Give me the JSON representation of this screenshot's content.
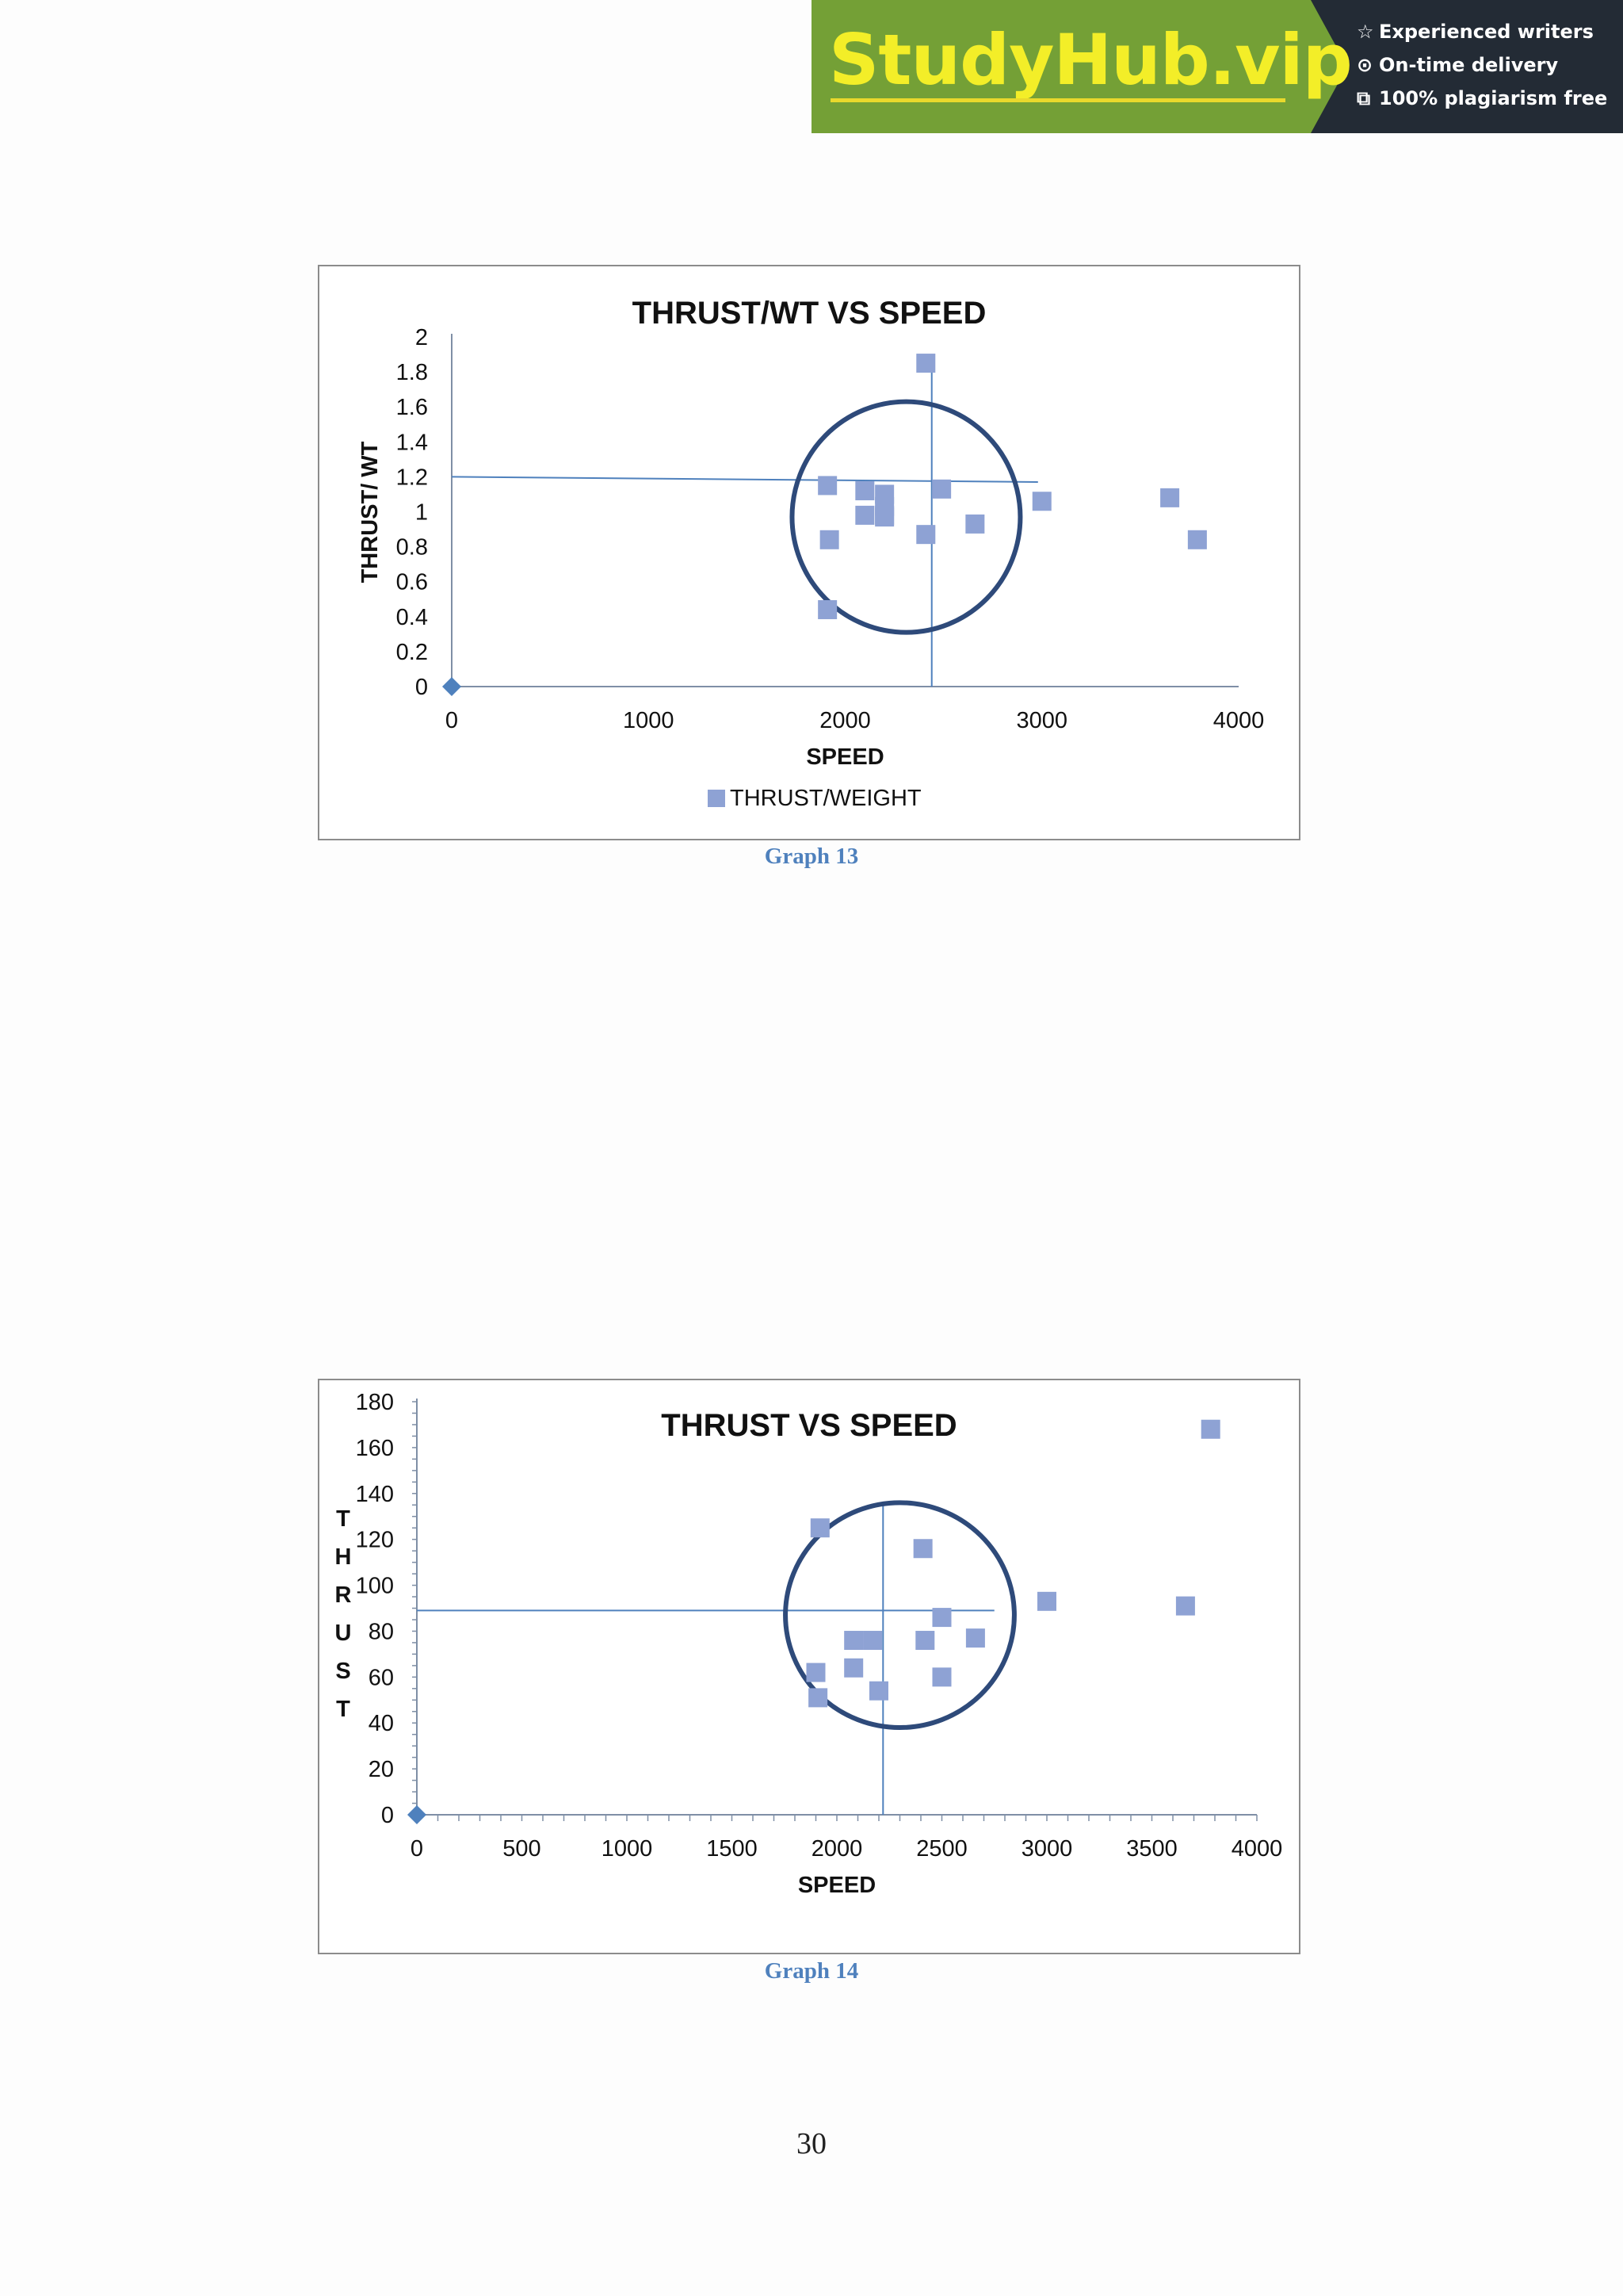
{
  "banner": {
    "brand": "StudyHub.vip",
    "features": [
      {
        "icon": "star-icon",
        "glyph": "☆",
        "text": "Experienced writers"
      },
      {
        "icon": "clock-icon",
        "glyph": "⊙",
        "text": "On-time delivery"
      },
      {
        "icon": "copy-icon",
        "glyph": "⧉",
        "text": "100% plagiarism free"
      }
    ],
    "colors": {
      "green": "#74a036",
      "dark": "#232b35",
      "brand_text": "#f3ee28"
    }
  },
  "captions": [
    "Graph 13",
    "Graph 14"
  ],
  "page_number": "30",
  "chart_data": [
    {
      "type": "scatter",
      "title": "THRUST/WT VS SPEED",
      "xlabel": "SPEED",
      "ylabel": "THRUST/ WT",
      "xlim": [
        0,
        4000
      ],
      "ylim": [
        0,
        2
      ],
      "xticks": [
        "0",
        "1000",
        "2000",
        "3000",
        "4000"
      ],
      "yticks": [
        "0",
        "0.2",
        "0.4",
        "0.6",
        "0.8",
        "1",
        "1.2",
        "1.4",
        "1.6",
        "1.8",
        "2"
      ],
      "legend": "bottom",
      "series": [
        {
          "name": "THRUST/WEIGHT",
          "color": "#8ea2d4",
          "x": [
            2410,
            1910,
            2100,
            2200,
            2490,
            2200,
            2200,
            2100,
            2200,
            2660,
            1920,
            2410,
            3000,
            3650,
            3790,
            1910
          ],
          "y": [
            1.85,
            1.15,
            1.12,
            1.1,
            1.13,
            1.03,
            0.97,
            0.98,
            0.98,
            0.93,
            0.84,
            0.87,
            1.06,
            1.08,
            0.84,
            0.44
          ]
        },
        {
          "color": "#4f81bd",
          "marker": "diamond",
          "x": [
            0
          ],
          "y": [
            0
          ]
        }
      ],
      "reference_lines": {
        "horizontal": {
          "x": [
            0,
            2980
          ],
          "y": [
            1.2,
            1.17
          ]
        },
        "vertical": {
          "x": 2440,
          "y": [
            0,
            1.9
          ]
        }
      },
      "circle": {
        "cx": 2310,
        "cy": 0.97,
        "r_x": 580,
        "r_y": 0.66,
        "color": "#2e4a7a"
      }
    },
    {
      "type": "scatter",
      "title": "THRUST VS SPEED",
      "xlabel": "SPEED",
      "ylabel": "T H R U S T",
      "xlim": [
        0,
        4000
      ],
      "ylim": [
        0,
        180
      ],
      "xticks": [
        "0",
        "500",
        "1000",
        "1500",
        "2000",
        "2500",
        "3000",
        "3500",
        "4000"
      ],
      "yticks": [
        "0",
        "20",
        "40",
        "60",
        "80",
        "100",
        "120",
        "140",
        "160",
        "180"
      ],
      "series": [
        {
          "color": "#8ea2d4",
          "x": [
            3780,
            1920,
            2410,
            3000,
            3660,
            2500,
            2080,
            2170,
            2420,
            2660,
            1900,
            2080,
            2500,
            2200,
            1910
          ],
          "y": [
            168,
            125,
            116,
            93,
            91,
            86,
            76,
            76,
            76,
            77,
            62,
            64,
            60,
            54,
            51
          ]
        },
        {
          "color": "#4f81bd",
          "marker": "diamond",
          "x": [
            0
          ],
          "y": [
            0
          ]
        }
      ],
      "reference_lines": {
        "horizontal": {
          "x": [
            0,
            2750
          ],
          "y": [
            89,
            89
          ]
        },
        "vertical": {
          "x": 2220,
          "y": [
            0,
            136
          ]
        }
      },
      "circle": {
        "cx": 2300,
        "cy": 87,
        "r_x": 545,
        "r_y": 49,
        "color": "#2e4a7a"
      }
    }
  ]
}
